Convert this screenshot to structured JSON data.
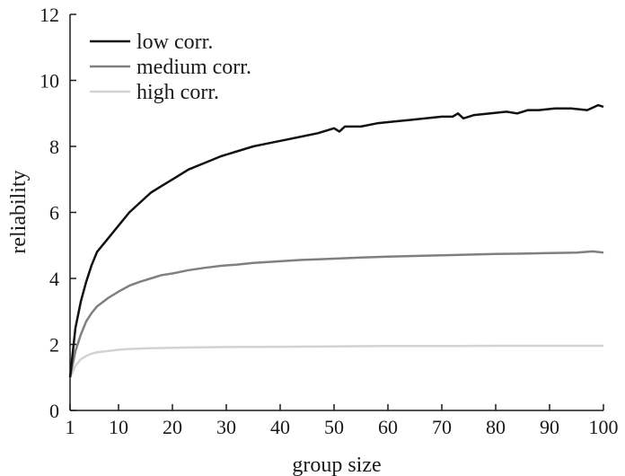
{
  "chart_data": {
    "type": "line",
    "title": "",
    "xlabel": "group size",
    "ylabel": "reliability",
    "xlim": [
      1,
      100
    ],
    "ylim": [
      0,
      12
    ],
    "xticks": [
      1,
      10,
      20,
      30,
      40,
      50,
      60,
      70,
      80,
      90,
      100
    ],
    "yticks": [
      0,
      2,
      4,
      6,
      8,
      10,
      12
    ],
    "grid": false,
    "legend_position": "top-left",
    "series": [
      {
        "name": "low corr.",
        "color": "#111111",
        "x": [
          1,
          2,
          3,
          4,
          5,
          6,
          8,
          10,
          12,
          14,
          16,
          18,
          20,
          23,
          26,
          29,
          32,
          35,
          38,
          41,
          44,
          47,
          50,
          51,
          52,
          55,
          58,
          61,
          64,
          67,
          70,
          72,
          73,
          74,
          76,
          79,
          82,
          84,
          86,
          88,
          91,
          94,
          97,
          99,
          100
        ],
        "y": [
          1.0,
          2.5,
          3.3,
          3.9,
          4.4,
          4.8,
          5.2,
          5.6,
          6.0,
          6.3,
          6.6,
          6.8,
          7.0,
          7.3,
          7.5,
          7.7,
          7.85,
          8.0,
          8.1,
          8.2,
          8.3,
          8.4,
          8.55,
          8.45,
          8.6,
          8.6,
          8.7,
          8.75,
          8.8,
          8.85,
          8.9,
          8.9,
          9.0,
          8.85,
          8.95,
          9.0,
          9.05,
          9.0,
          9.1,
          9.1,
          9.15,
          9.15,
          9.1,
          9.25,
          9.2
        ]
      },
      {
        "name": "medium corr.",
        "color": "#808080",
        "x": [
          1,
          2,
          3,
          4,
          5,
          6,
          8,
          10,
          12,
          14,
          16,
          18,
          20,
          23,
          26,
          29,
          32,
          35,
          38,
          41,
          44,
          47,
          50,
          55,
          60,
          65,
          70,
          75,
          80,
          85,
          90,
          95,
          98,
          100
        ],
        "y": [
          1.0,
          1.8,
          2.3,
          2.7,
          2.95,
          3.15,
          3.4,
          3.6,
          3.78,
          3.9,
          4.0,
          4.1,
          4.15,
          4.25,
          4.32,
          4.38,
          4.42,
          4.47,
          4.5,
          4.53,
          4.56,
          4.58,
          4.6,
          4.63,
          4.66,
          4.68,
          4.7,
          4.72,
          4.74,
          4.75,
          4.77,
          4.78,
          4.82,
          4.78
        ]
      },
      {
        "name": "high corr.",
        "color": "#d3d3d3",
        "x": [
          1,
          2,
          3,
          4,
          5,
          6,
          8,
          10,
          12,
          15,
          20,
          25,
          30,
          40,
          50,
          60,
          70,
          80,
          90,
          100
        ],
        "y": [
          1.0,
          1.35,
          1.55,
          1.65,
          1.72,
          1.76,
          1.8,
          1.84,
          1.86,
          1.88,
          1.9,
          1.91,
          1.92,
          1.93,
          1.94,
          1.95,
          1.95,
          1.96,
          1.96,
          1.96
        ]
      }
    ]
  }
}
